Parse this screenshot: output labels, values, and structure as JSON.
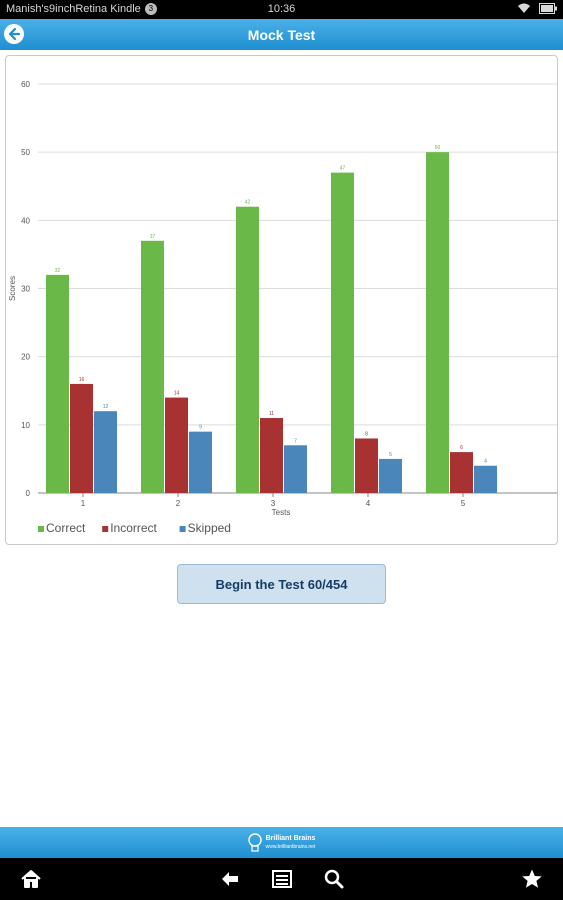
{
  "status_bar": {
    "device_name": "Manish's9inchRetina Kindle",
    "notification_count": "3",
    "time": "10:36"
  },
  "header": {
    "title": "Mock Test"
  },
  "chart_data": {
    "type": "bar",
    "categories": [
      "1",
      "2",
      "3",
      "4",
      "5"
    ],
    "series": [
      {
        "name": "Correct",
        "values": [
          32,
          37,
          42,
          47,
          50
        ],
        "labels": [
          "32",
          "37",
          "42",
          "47",
          "50"
        ],
        "color": "#6ab948"
      },
      {
        "name": "Incorrect",
        "values": [
          16,
          14,
          11,
          8,
          6
        ],
        "labels": [
          "16",
          "14",
          "11",
          "8",
          "6"
        ],
        "color": "#a83232"
      },
      {
        "name": "Skipped",
        "values": [
          12,
          9,
          7,
          5,
          4
        ],
        "labels": [
          "12",
          "9",
          "7",
          "5",
          "4"
        ],
        "color": "#4a86b9"
      }
    ],
    "title": "",
    "xlabel": "Tests",
    "ylabel": "Scores",
    "ylim": [
      0,
      60
    ],
    "yticks": [
      "0",
      "10",
      "20",
      "30",
      "40",
      "50",
      "60"
    ],
    "grid": true,
    "legend_position": "bottom-left"
  },
  "actions": {
    "begin_label": "Begin the Test 60/454"
  },
  "footer": {
    "brand_line1": "Brilliant Brains",
    "brand_line2": "www.brilliantbrains.net"
  },
  "colors": {
    "accent": "#2a9be0",
    "button_bg": "#cfe0ee",
    "button_text": "#153e66"
  }
}
